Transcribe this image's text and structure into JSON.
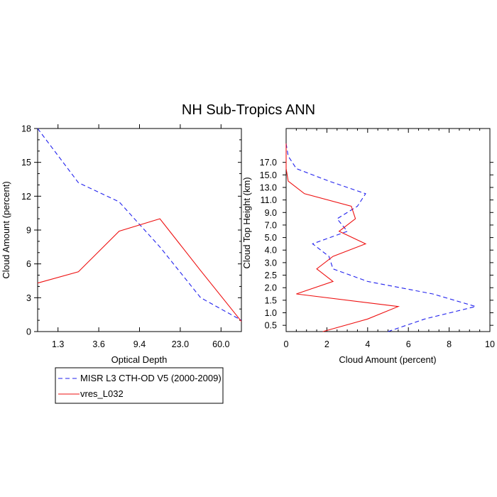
{
  "title": "NH Sub-Tropics ANN",
  "colors": {
    "obs": "#2222ee",
    "model": "#ee1111"
  },
  "legend": {
    "obs_label": "MISR L3 CTH-OD V5 (2000-2009)",
    "model_label": "vres_L032"
  },
  "chart_data": [
    {
      "type": "line",
      "name": "left",
      "xlabel": "Optical Depth",
      "ylabel": "Cloud Amount (percent)",
      "xticks": [
        "1.3",
        "3.6",
        "9.4",
        "23.0",
        "60.0"
      ],
      "yticks": [
        "0",
        "3",
        "6",
        "9",
        "12",
        "15",
        "18"
      ],
      "ylim": [
        0,
        18
      ],
      "series": [
        {
          "name": "MISR L3 CTH-OD V5 (2000-2009)",
          "style": "dashed",
          "color": "#2222ee",
          "x": [
            0,
            1,
            2,
            3,
            4,
            5
          ],
          "y": [
            18.0,
            13.2,
            11.5,
            7.5,
            3.0,
            1.0
          ]
        },
        {
          "name": "vres_L032",
          "style": "solid",
          "color": "#ee1111",
          "x": [
            0,
            1,
            2,
            3,
            4,
            5
          ],
          "y": [
            4.3,
            5.3,
            8.9,
            10.0,
            5.4,
            0.9
          ]
        }
      ]
    },
    {
      "type": "line",
      "name": "right",
      "xlabel": "Cloud Amount (percent)",
      "ylabel": "Cloud Top Height (km)",
      "xticks": [
        "0",
        "2",
        "4",
        "6",
        "8",
        "10"
      ],
      "xlim": [
        0,
        10
      ],
      "yticks": [
        "0.5",
        "1.0",
        "1.5",
        "2.0",
        "2.5",
        "3.0",
        "4.0",
        "5.0",
        "7.0",
        "9.0",
        "11.0",
        "13.0",
        "15.0",
        "17.0"
      ],
      "series": [
        {
          "name": "MISR L3 CTH-OD V5 (2000-2009)",
          "style": "dashed",
          "color": "#2222ee",
          "level": [
            0,
            1,
            2,
            3,
            4,
            5,
            6,
            7,
            8,
            9,
            10,
            11,
            12,
            13,
            14,
            15
          ],
          "x": [
            5.0,
            6.8,
            9.3,
            7.2,
            4.0,
            2.3,
            2.1,
            1.3,
            3.0,
            2.5,
            3.5,
            3.9,
            2.1,
            0.5,
            0.1,
            0.0
          ]
        },
        {
          "name": "vres_L032",
          "style": "solid",
          "color": "#ee1111",
          "level": [
            0,
            1,
            2,
            3,
            4,
            5,
            6,
            7,
            8,
            9,
            10,
            11,
            12,
            13,
            14,
            15
          ],
          "x": [
            1.8,
            4.0,
            5.5,
            0.5,
            2.3,
            1.5,
            2.3,
            3.9,
            2.6,
            3.4,
            3.2,
            0.9,
            0.1,
            0.0,
            0.0,
            0.0
          ]
        }
      ]
    }
  ]
}
